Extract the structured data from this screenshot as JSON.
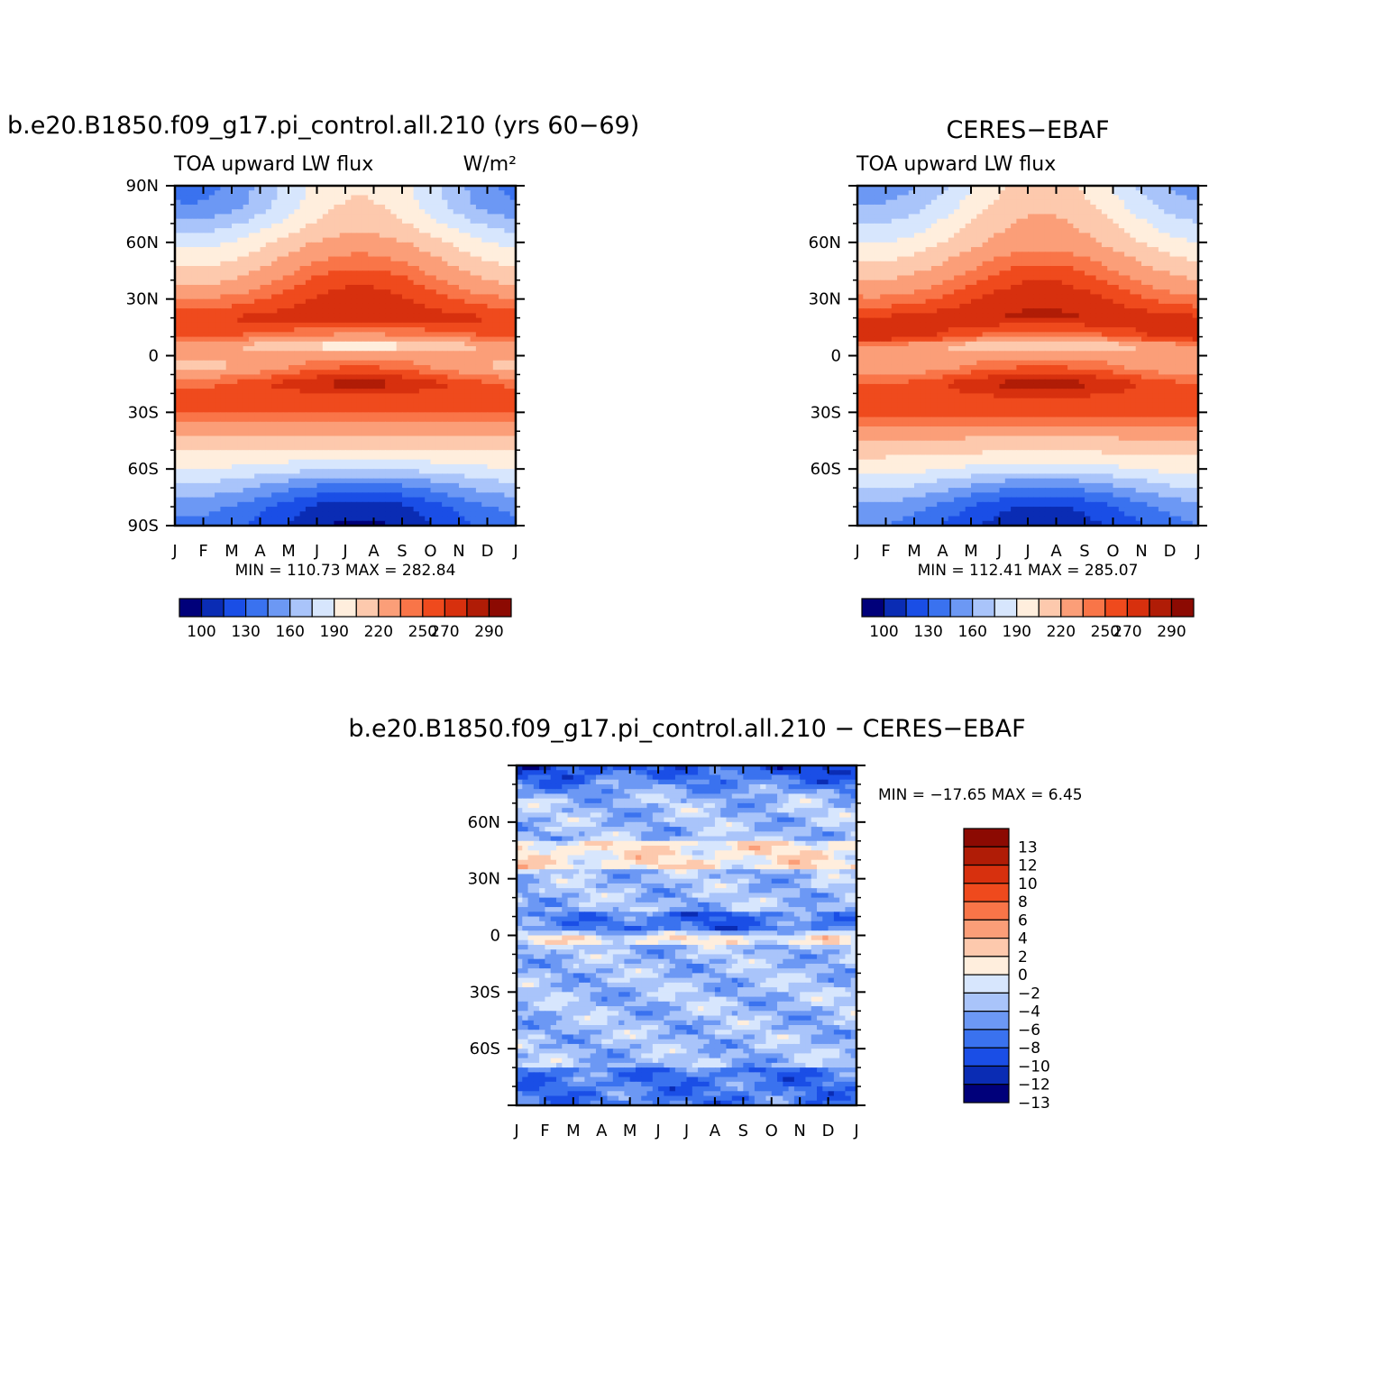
{
  "colors": {
    "abs_levels": [
      "#00007a",
      "#0a2cb4",
      "#1a4ee6",
      "#3a72ef",
      "#6c98f4",
      "#a9c4fa",
      "#d7e6fd",
      "#ffeedd",
      "#fdc9ad",
      "#fb9e78",
      "#f97548",
      "#ef4a1d",
      "#d7300e",
      "#b01c06",
      "#8c0a02"
    ],
    "diff_levels": [
      "#00007a",
      "#0a2cb4",
      "#1a4ee6",
      "#3a72ef",
      "#6c98f4",
      "#a9c4fa",
      "#d7e6fd",
      "#ffeedd",
      "#fdc9ad",
      "#fb9e78",
      "#f97548",
      "#ef4a1d",
      "#d7300e",
      "#b01c06",
      "#8c0a02"
    ]
  },
  "chart_data": [
    {
      "type": "heatmap",
      "title": "b.e20.B1850.f09_g17.pi_control.all.210 (yrs 60−69)",
      "left_label": "TOA upward LW flux",
      "right_label": "W/m²",
      "x_tick_labels": [
        "J",
        "F",
        "M",
        "A",
        "M",
        "J",
        "J",
        "A",
        "S",
        "O",
        "N",
        "D",
        "J"
      ],
      "y_tick_labels": [
        "90N",
        "60N",
        "30N",
        "0",
        "30S",
        "60S",
        "90S"
      ],
      "ylim": [
        -90,
        90
      ],
      "latitudes": [
        90,
        80,
        70,
        60,
        50,
        40,
        30,
        20,
        10,
        5,
        0,
        -5,
        -10,
        -15,
        -20,
        -30,
        -40,
        -50,
        -60,
        -70,
        -80,
        -90
      ],
      "profile_jan": [
        155,
        160,
        180,
        200,
        215,
        230,
        250,
        270,
        262,
        238,
        245,
        228,
        245,
        258,
        262,
        262,
        238,
        222,
        205,
        185,
        165,
        155
      ],
      "profile_jul": [
        218,
        222,
        228,
        242,
        255,
        268,
        275,
        278,
        245,
        208,
        245,
        258,
        270,
        285,
        270,
        262,
        240,
        220,
        190,
        150,
        120,
        112
      ],
      "min_max_label": "MIN = 110.73 MAX = 282.84",
      "colorbar_labels": [
        "100",
        "130",
        "160",
        "190",
        "220",
        "250",
        "270",
        "290"
      ]
    },
    {
      "type": "heatmap",
      "title": "CERES−EBAF",
      "left_label": "TOA upward LW flux",
      "x_tick_labels": [
        "J",
        "F",
        "M",
        "A",
        "M",
        "J",
        "J",
        "A",
        "S",
        "O",
        "N",
        "D",
        "J"
      ],
      "y_tick_labels": [
        "",
        "60N",
        "30N",
        "0",
        "30S",
        "60S",
        ""
      ],
      "ylim": [
        -90,
        90
      ],
      "latitudes": [
        90,
        80,
        70,
        60,
        50,
        40,
        30,
        20,
        10,
        5,
        0,
        -5,
        -10,
        -15,
        -20,
        -30,
        -40,
        -50,
        -60,
        -70,
        -80,
        -90
      ],
      "profile_jan": [
        165,
        175,
        190,
        205,
        220,
        235,
        252,
        272,
        280,
        245,
        250,
        235,
        248,
        260,
        265,
        265,
        242,
        225,
        212,
        192,
        170,
        160
      ],
      "profile_jul": [
        225,
        232,
        238,
        245,
        258,
        270,
        278,
        282,
        248,
        212,
        245,
        258,
        272,
        287,
        272,
        264,
        242,
        222,
        195,
        158,
        128,
        118
      ],
      "min_max_label": "MIN = 112.41 MAX = 285.07",
      "colorbar_labels": [
        "100",
        "130",
        "160",
        "190",
        "220",
        "250",
        "270",
        "290"
      ]
    },
    {
      "type": "heatmap",
      "title": "b.e20.B1850.f09_g17.pi_control.all.210 − CERES−EBAF",
      "x_tick_labels": [
        "J",
        "F",
        "M",
        "A",
        "M",
        "J",
        "J",
        "A",
        "S",
        "O",
        "N",
        "D",
        "J"
      ],
      "y_tick_labels": [
        "",
        "60N",
        "30N",
        "0",
        "30S",
        "60S",
        ""
      ],
      "ylim": [
        -90,
        90
      ],
      "min_max_label": "MIN = −17.65 MAX =    6.45",
      "colorbar_labels": [
        "13",
        "12",
        "10",
        "8",
        "6",
        "4",
        "2",
        "0",
        "−2",
        "−4",
        "−6",
        "−8",
        "−10",
        "−12",
        "−13"
      ]
    }
  ]
}
